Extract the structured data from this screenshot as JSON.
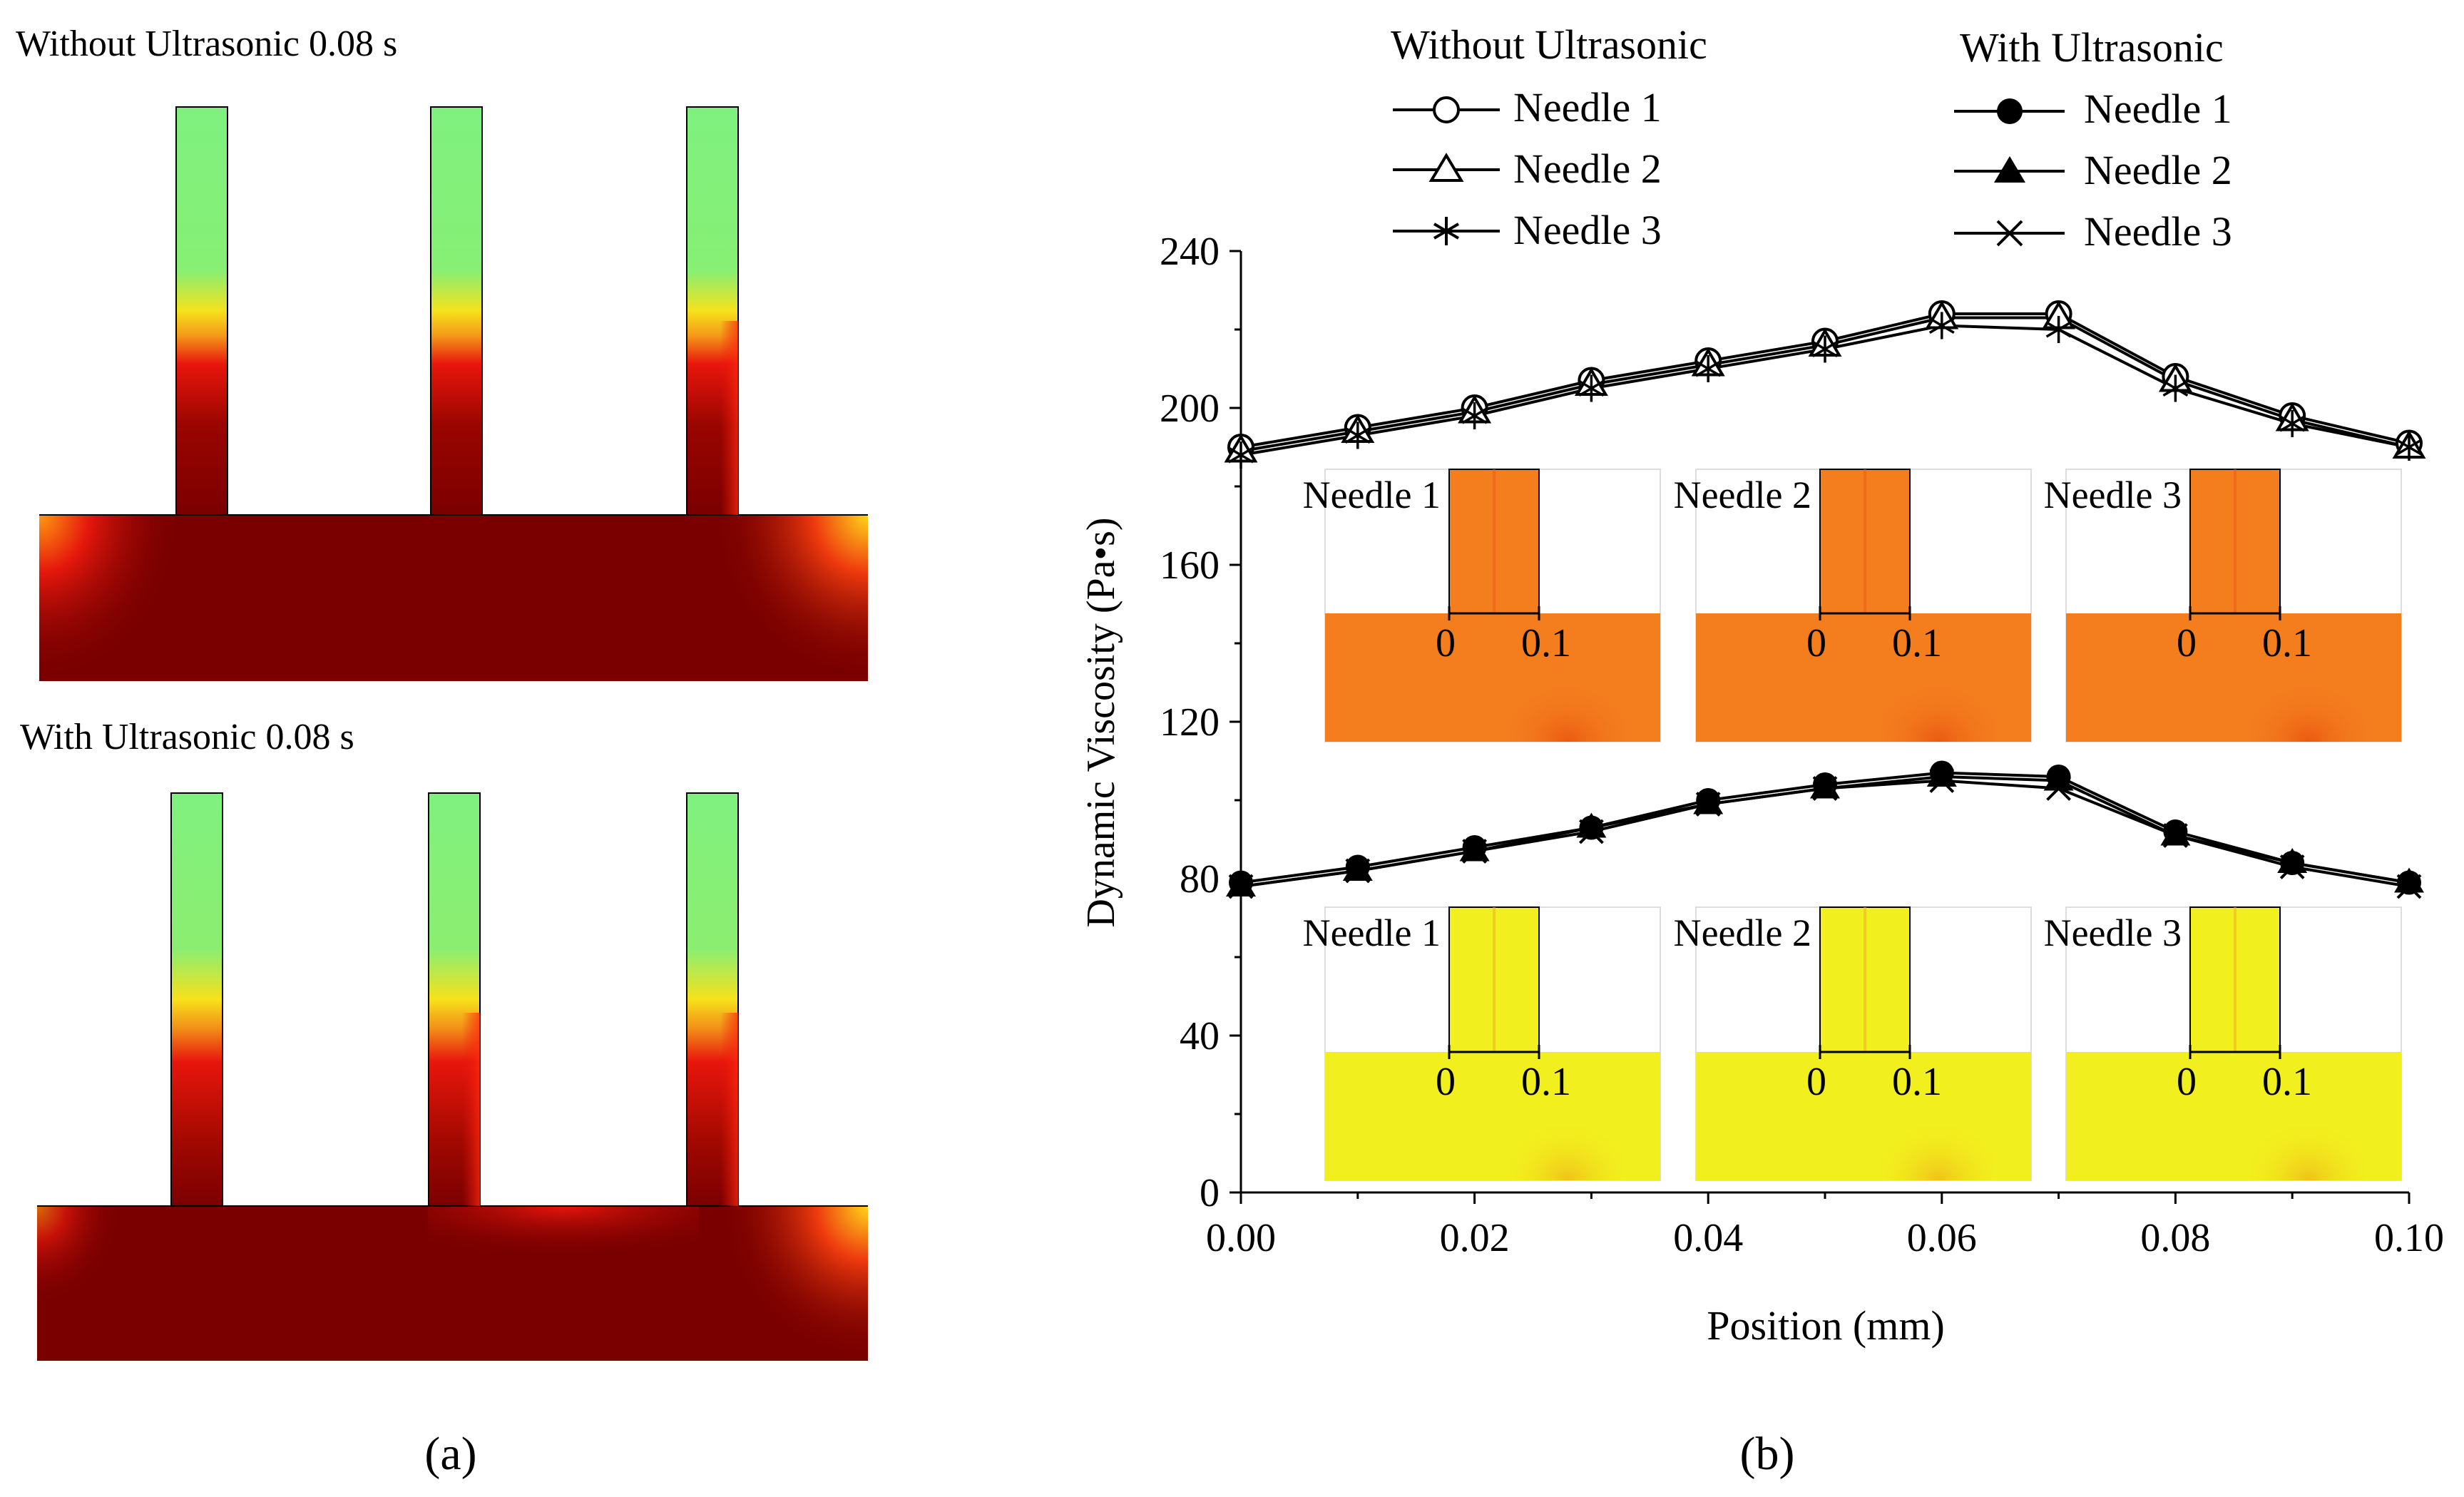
{
  "panel_a": {
    "top_title": "Without Ultrasonic 0.08 s",
    "bottom_title": "With Ultrasonic 0.08 s",
    "label": "(a)",
    "colors": {
      "cool": "#7ff07f",
      "mid": "#f7e11a",
      "hot": "#e8160c",
      "base": "#7a0000"
    }
  },
  "panel_b": {
    "label": "(b)",
    "legend": {
      "without_title": "Without Ultrasonic",
      "with_title": "With Ultrasonic",
      "without_items": [
        "Needle 1",
        "Needle 2",
        "Needle 3"
      ],
      "with_items": [
        "Needle 1",
        "Needle 2",
        "Needle 3"
      ]
    },
    "insets": {
      "titles": [
        "Needle 1",
        "Needle 2",
        "Needle 3"
      ],
      "scale_start": "0",
      "scale_end": "0.1",
      "colors": {
        "without": "#f47d1e",
        "with": "#f2ef1e"
      }
    }
  },
  "chart_data": {
    "type": "line",
    "title": "",
    "xlabel": "Position (mm)",
    "ylabel": "Dynamic Viscosity (Pa•s)",
    "xlim": [
      0,
      0.1
    ],
    "ylim": [
      0,
      240
    ],
    "xticks": [
      0.0,
      0.02,
      0.04,
      0.06,
      0.08,
      0.1
    ],
    "xtick_labels": [
      "0.00",
      "0.02",
      "0.04",
      "0.06",
      "0.08",
      "0.10"
    ],
    "yticks": [
      0,
      40,
      80,
      120,
      160,
      200,
      240
    ],
    "ytick_labels": [
      "0",
      "40",
      "80",
      "120",
      "160",
      "200",
      "240"
    ],
    "x": [
      0.0,
      0.01,
      0.02,
      0.03,
      0.04,
      0.05,
      0.06,
      0.07,
      0.08,
      0.09,
      0.1
    ],
    "series": [
      {
        "name": "Without Ultrasonic – Needle 1",
        "marker": "circle-open",
        "values": [
          190,
          195,
          200,
          207,
          212,
          217,
          224,
          224,
          208,
          198,
          191
        ]
      },
      {
        "name": "Without Ultrasonic – Needle 2",
        "marker": "triangle-open",
        "values": [
          189,
          194,
          199,
          206,
          211,
          216,
          223,
          223,
          207,
          197,
          190
        ]
      },
      {
        "name": "Without Ultrasonic – Needle 3",
        "marker": "asterisk",
        "values": [
          188,
          193,
          198,
          205,
          210,
          215,
          221,
          220,
          205,
          196,
          190
        ]
      },
      {
        "name": "With Ultrasonic – Needle 1",
        "marker": "circle-filled",
        "values": [
          79,
          83,
          88,
          93,
          100,
          104,
          107,
          106,
          92,
          84,
          79
        ]
      },
      {
        "name": "With Ultrasonic – Needle 2",
        "marker": "triangle-filled",
        "values": [
          78,
          82,
          87,
          93,
          99,
          103,
          106,
          105,
          91,
          84,
          79
        ]
      },
      {
        "name": "With Ultrasonic – Needle 3",
        "marker": "cross",
        "values": [
          78,
          82,
          87,
          92,
          99,
          103,
          105,
          103,
          91,
          83,
          78
        ]
      }
    ]
  }
}
